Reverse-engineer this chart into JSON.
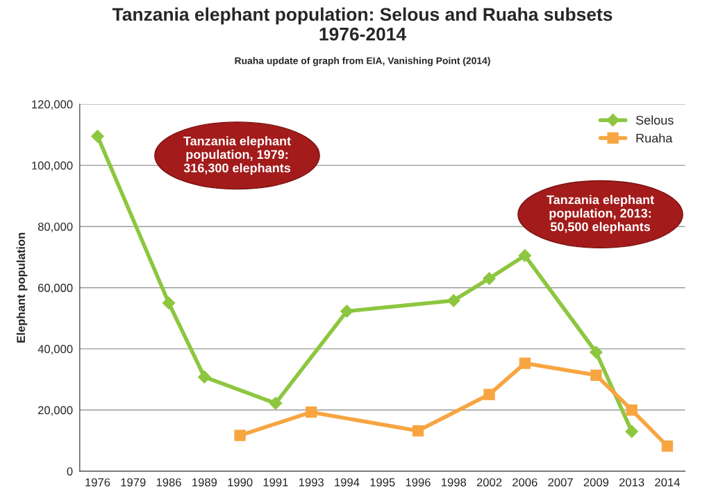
{
  "chart_data": {
    "type": "line",
    "title": "Tanzania elephant population: Selous and Ruaha subsets\n1976-2014",
    "subtitle": "Ruaha update of graph from EIA, Vanishing Point (2014)",
    "ylabel": "Elephant population",
    "categories": [
      "1976",
      "1979",
      "1986",
      "1989",
      "1990",
      "1991",
      "1993",
      "1994",
      "1995",
      "1996",
      "1998",
      "2002",
      "2006",
      "2007",
      "2009",
      "2013",
      "2014"
    ],
    "series": [
      {
        "name": "Selous",
        "color": "#8dc63f",
        "marker": "diamond",
        "values": [
          109500,
          null,
          55000,
          30800,
          null,
          22200,
          null,
          52300,
          null,
          null,
          55800,
          63000,
          70500,
          null,
          38900,
          13000,
          null
        ]
      },
      {
        "name": "Ruaha",
        "color": "#f7a541",
        "marker": "square",
        "values": [
          null,
          null,
          null,
          null,
          11700,
          null,
          19300,
          null,
          null,
          13200,
          null,
          25100,
          35300,
          null,
          31400,
          20000,
          8200
        ]
      }
    ],
    "ylim": [
      0,
      120000
    ],
    "yticks": [
      {
        "value": 0,
        "label": "0"
      },
      {
        "value": 20000,
        "label": "20,000"
      },
      {
        "value": 40000,
        "label": "40,000"
      },
      {
        "value": 60000,
        "label": "60,000"
      },
      {
        "value": 80000,
        "label": "80,000"
      },
      {
        "value": 100000,
        "label": "100,000"
      },
      {
        "value": 120000,
        "label": "120,000"
      }
    ],
    "grid": "y",
    "legend": "top right",
    "line_style": "solid",
    "annotations": [
      "Tanzania elephant\npopulation, 1979:\n316,300 elephants",
      "Tanzania elephant\npopulation, 2013:\n50,500 elephants"
    ]
  }
}
